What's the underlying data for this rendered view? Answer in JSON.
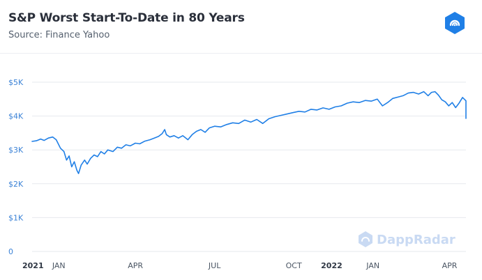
{
  "header": {
    "title": "S&P Worst Start-To-Date in 80 Years",
    "subtitle": "Source: Finance Yahoo",
    "logo_icon": "dappradar-logo-icon"
  },
  "watermark": {
    "text": "DappRadar",
    "icon": "dappradar-logo-icon"
  },
  "colors": {
    "line": "#1f7fe6",
    "accent": "#1f7fe6",
    "grid": "#e6e9ee",
    "watermark": "#c9daf3"
  },
  "chart_data": {
    "type": "line",
    "title": "S&P Worst Start-To-Date in 80 Years",
    "subtitle": "Source: Finance Yahoo",
    "xlabel": "",
    "ylabel": "",
    "ylim": [
      0,
      5000
    ],
    "xlim": [
      "2021-01-01",
      "2022-05-20"
    ],
    "grid": true,
    "legend": "none",
    "y_ticks": [
      {
        "value": 0,
        "label": "0"
      },
      {
        "value": 1000,
        "label": "$1K"
      },
      {
        "value": 2000,
        "label": "$2K"
      },
      {
        "value": 3000,
        "label": "$3K"
      },
      {
        "value": 4000,
        "label": "$4K"
      },
      {
        "value": 5000,
        "label": "$5K"
      }
    ],
    "x_ticks": [
      {
        "date": "2021-01-01",
        "label": "2021",
        "major": true
      },
      {
        "date": "2021-02-01",
        "label": "JAN",
        "major": false
      },
      {
        "date": "2021-05-01",
        "label": "APR",
        "major": false
      },
      {
        "date": "2021-08-01",
        "label": "JUL",
        "major": false
      },
      {
        "date": "2021-11-01",
        "label": "OCT",
        "major": false
      },
      {
        "date": "2021-12-15",
        "label": "2022",
        "major": true
      },
      {
        "date": "2022-02-01",
        "label": "JAN",
        "major": false
      },
      {
        "date": "2022-05-01",
        "label": "APR",
        "major": false
      }
    ],
    "series": [
      {
        "values": [
          [
            "2021-01-01",
            3250
          ],
          [
            "2021-01-06",
            3270
          ],
          [
            "2021-01-11",
            3320
          ],
          [
            "2021-01-15",
            3280
          ],
          [
            "2021-01-20",
            3350
          ],
          [
            "2021-01-25",
            3380
          ],
          [
            "2021-01-29",
            3300
          ],
          [
            "2021-02-03",
            3050
          ],
          [
            "2021-02-07",
            2950
          ],
          [
            "2021-02-10",
            2700
          ],
          [
            "2021-02-13",
            2820
          ],
          [
            "2021-02-16",
            2500
          ],
          [
            "2021-02-19",
            2650
          ],
          [
            "2021-02-22",
            2400
          ],
          [
            "2021-02-24",
            2300
          ],
          [
            "2021-02-27",
            2550
          ],
          [
            "2021-03-03",
            2700
          ],
          [
            "2021-03-06",
            2580
          ],
          [
            "2021-03-10",
            2750
          ],
          [
            "2021-03-14",
            2850
          ],
          [
            "2021-03-18",
            2800
          ],
          [
            "2021-03-22",
            2950
          ],
          [
            "2021-03-26",
            2880
          ],
          [
            "2021-03-30",
            3000
          ],
          [
            "2021-04-05",
            2950
          ],
          [
            "2021-04-10",
            3080
          ],
          [
            "2021-04-15",
            3050
          ],
          [
            "2021-04-20",
            3150
          ],
          [
            "2021-04-25",
            3120
          ],
          [
            "2021-05-01",
            3200
          ],
          [
            "2021-05-06",
            3180
          ],
          [
            "2021-05-12",
            3260
          ],
          [
            "2021-05-18",
            3300
          ],
          [
            "2021-05-24",
            3360
          ],
          [
            "2021-05-28",
            3400
          ],
          [
            "2021-06-01",
            3480
          ],
          [
            "2021-06-04",
            3600
          ],
          [
            "2021-06-06",
            3450
          ],
          [
            "2021-06-10",
            3380
          ],
          [
            "2021-06-15",
            3420
          ],
          [
            "2021-06-20",
            3350
          ],
          [
            "2021-06-25",
            3420
          ],
          [
            "2021-07-01",
            3300
          ],
          [
            "2021-07-06",
            3450
          ],
          [
            "2021-07-11",
            3550
          ],
          [
            "2021-07-16",
            3600
          ],
          [
            "2021-07-21",
            3520
          ],
          [
            "2021-07-26",
            3650
          ],
          [
            "2021-08-01",
            3700
          ],
          [
            "2021-08-08",
            3680
          ],
          [
            "2021-08-15",
            3750
          ],
          [
            "2021-08-22",
            3800
          ],
          [
            "2021-08-29",
            3780
          ],
          [
            "2021-09-05",
            3880
          ],
          [
            "2021-09-12",
            3820
          ],
          [
            "2021-09-19",
            3900
          ],
          [
            "2021-09-26",
            3780
          ],
          [
            "2021-10-03",
            3920
          ],
          [
            "2021-10-10",
            3980
          ],
          [
            "2021-10-17",
            4020
          ],
          [
            "2021-10-24",
            4060
          ],
          [
            "2021-10-31",
            4100
          ],
          [
            "2021-11-07",
            4140
          ],
          [
            "2021-11-14",
            4120
          ],
          [
            "2021-11-21",
            4200
          ],
          [
            "2021-11-28",
            4180
          ],
          [
            "2021-12-05",
            4240
          ],
          [
            "2021-12-12",
            4200
          ],
          [
            "2021-12-19",
            4270
          ],
          [
            "2021-12-26",
            4300
          ],
          [
            "2022-01-02",
            4380
          ],
          [
            "2022-01-09",
            4420
          ],
          [
            "2022-01-16",
            4400
          ],
          [
            "2022-01-23",
            4460
          ],
          [
            "2022-01-30",
            4440
          ],
          [
            "2022-02-06",
            4500
          ],
          [
            "2022-02-12",
            4300
          ],
          [
            "2022-02-18",
            4400
          ],
          [
            "2022-02-24",
            4520
          ],
          [
            "2022-03-02",
            4560
          ],
          [
            "2022-03-08",
            4600
          ],
          [
            "2022-03-14",
            4680
          ],
          [
            "2022-03-20",
            4700
          ],
          [
            "2022-03-26",
            4650
          ],
          [
            "2022-04-01",
            4720
          ],
          [
            "2022-04-06",
            4600
          ],
          [
            "2022-04-10",
            4700
          ],
          [
            "2022-04-14",
            4720
          ],
          [
            "2022-04-18",
            4620
          ],
          [
            "2022-04-22",
            4480
          ],
          [
            "2022-04-26",
            4420
          ],
          [
            "2022-04-30",
            4300
          ],
          [
            "2022-05-04",
            4400
          ],
          [
            "2022-05-08",
            4250
          ],
          [
            "2022-05-12",
            4380
          ],
          [
            "2022-05-16",
            4550
          ],
          [
            "2022-05-20",
            4450
          ],
          [
            "2022-05-24",
            4400
          ],
          [
            "2022-05-28",
            4300
          ],
          [
            "2022-06-01",
            4150
          ],
          [
            "2022-06-05",
            4000
          ],
          [
            "2022-06-08",
            3930
          ]
        ]
      }
    ]
  }
}
